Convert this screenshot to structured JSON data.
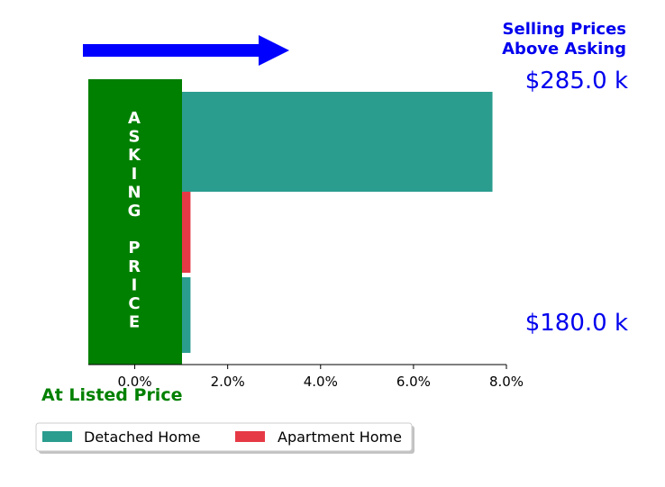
{
  "chart_data": {
    "type": "bar",
    "orientation": "horizontal",
    "series": [
      {
        "name": "Detached Home",
        "color": "#2a9d8f",
        "values": [
          7.7,
          1.2
        ]
      },
      {
        "name": "Apartment Home",
        "color": "#e63946",
        "values": [
          1.2
        ]
      }
    ],
    "x_ticks": [
      "0.0%",
      "2.0%",
      "4.0%",
      "6.0%",
      "8.0%"
    ],
    "x_tick_values": [
      0,
      2,
      4,
      6,
      8
    ],
    "xlim": [
      -1.0,
      8.0
    ],
    "grid": false,
    "legend_position": "bottom-left",
    "annotations": {
      "heading_line1": "Selling Prices",
      "heading_line2": "Above Asking",
      "high_price": "$285.0 k",
      "low_price": "$180.0 k",
      "asking_block_text": "ASKING  PRICE",
      "asking_block_color": "#008000",
      "listed_label": "At Listed Price",
      "arrow_color": "#0000ff",
      "arrow_direction": "right"
    }
  }
}
